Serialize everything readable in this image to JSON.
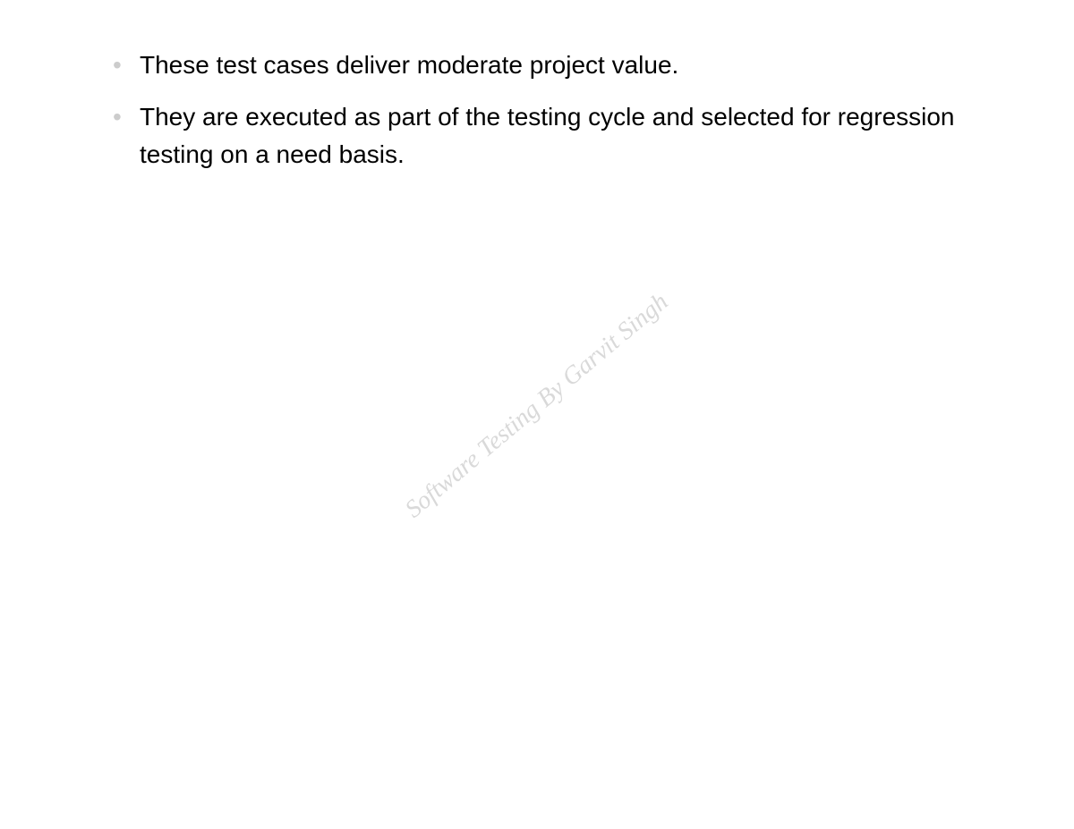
{
  "bullets": {
    "items": [
      "These test cases deliver moderate project value.",
      "They are executed as part of the testing cycle and selected for regression testing on a need basis."
    ]
  },
  "watermark": {
    "text": "Software Testing By Garvit Singh",
    "color": "#d9d9d9",
    "fontFamily": "Georgia, serif",
    "fontStyle": "italic",
    "fontSize": 28,
    "rotationDeg": -40
  },
  "page": {
    "background": "#ffffff",
    "textColor": "#000000",
    "bulletColor": "#cccccc",
    "bodyFontSize": 28
  }
}
